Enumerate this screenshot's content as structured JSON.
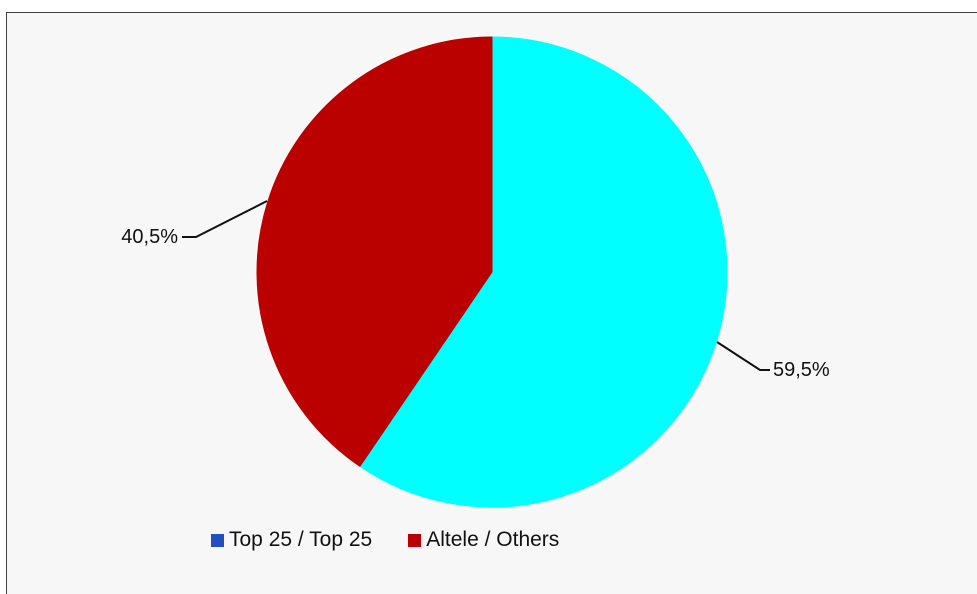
{
  "chart_data": {
    "type": "pie",
    "title": "",
    "slices": [
      {
        "name": "Top 25 / Top 25",
        "value": 59.5,
        "label": "59,5%",
        "color": "#00ffff",
        "legend_color": "#1f4fc1"
      },
      {
        "name": "Altele / Others",
        "value": 40.5,
        "label": "40,5%",
        "color": "#bb0000",
        "legend_color": "#bb0000"
      }
    ],
    "start_angle_deg": 0,
    "direction": "clockwise",
    "legend_position": "bottom",
    "legend": [
      {
        "label": "Top 25 / Top 25",
        "color": "#1f4fc1"
      },
      {
        "label": "Altele / Others",
        "color": "#bb0000"
      }
    ]
  }
}
